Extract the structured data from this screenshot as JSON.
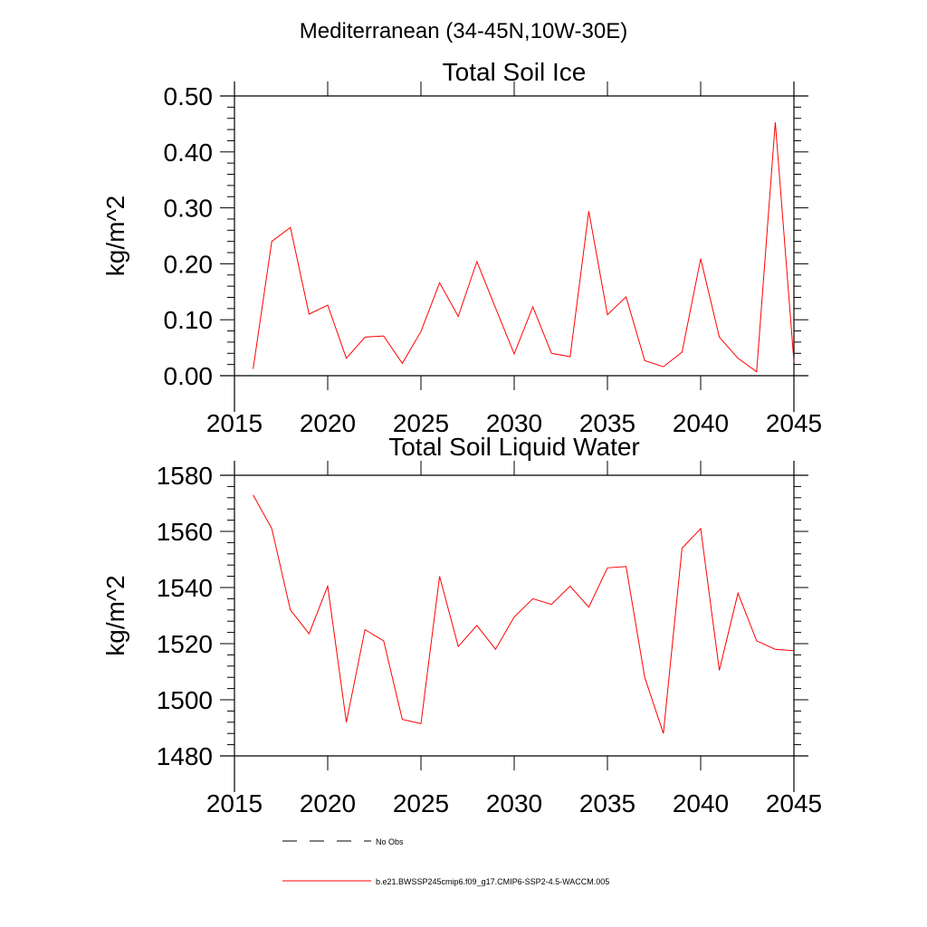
{
  "figure": {
    "suptitle": "Mediterranean (34-45N,10W-30E)"
  },
  "chart_data": [
    {
      "type": "line",
      "title": "Total Soil Ice",
      "xlabel": "",
      "ylabel": "kg/m^2",
      "xlim": [
        2015,
        2045
      ],
      "ylim": [
        0.0,
        0.5
      ],
      "x_ticks": [
        "2015",
        "2020",
        "2025",
        "2030",
        "2035",
        "2040",
        "2045"
      ],
      "y_ticks": [
        "0.00",
        "0.10",
        "0.20",
        "0.30",
        "0.40",
        "0.50"
      ],
      "x": [
        2016,
        2017,
        2018,
        2019,
        2020,
        2021,
        2022,
        2023,
        2024,
        2025,
        2026,
        2027,
        2028,
        2029,
        2030,
        2031,
        2032,
        2033,
        2034,
        2035,
        2036,
        2037,
        2038,
        2039,
        2040,
        2041,
        2042,
        2043,
        2044,
        2045
      ],
      "series": [
        {
          "name": "b.e21.BWSSP245cmip6.f09_g17.CMIP6-SSP2-4.5-WACCM.005",
          "color": "#ff0000",
          "values": [
            0.012,
            0.24,
            0.265,
            0.11,
            0.126,
            0.031,
            0.069,
            0.071,
            0.022,
            0.079,
            0.166,
            0.106,
            0.204,
            0.121,
            0.039,
            0.123,
            0.04,
            0.034,
            0.294,
            0.109,
            0.141,
            0.027,
            0.016,
            0.042,
            0.209,
            0.069,
            0.031,
            0.007,
            0.453,
            0.025
          ]
        }
      ]
    },
    {
      "type": "line",
      "title": "Total Soil Liquid Water",
      "xlabel": "",
      "ylabel": "kg/m^2",
      "xlim": [
        2015,
        2045
      ],
      "ylim": [
        1480,
        1580
      ],
      "x_ticks": [
        "2015",
        "2020",
        "2025",
        "2030",
        "2035",
        "2040",
        "2045"
      ],
      "y_ticks": [
        "1480",
        "1500",
        "1520",
        "1540",
        "1560",
        "1580"
      ],
      "x": [
        2016,
        2017,
        2018,
        2019,
        2020,
        2021,
        2022,
        2023,
        2024,
        2025,
        2026,
        2027,
        2028,
        2029,
        2030,
        2031,
        2032,
        2033,
        2034,
        2035,
        2036,
        2037,
        2038,
        2039,
        2040,
        2041,
        2042,
        2043,
        2044,
        2045
      ],
      "series": [
        {
          "name": "b.e21.BWSSP245cmip6.f09_g17.CMIP6-SSP2-4.5-WACCM.005",
          "color": "#ff0000",
          "values": [
            1573,
            1561,
            1532,
            1523.5,
            1540.5,
            1492,
            1525,
            1521,
            1493,
            1491.5,
            1544,
            1519,
            1526.5,
            1518,
            1529.5,
            1536,
            1534,
            1540.5,
            1533,
            1547,
            1547.5,
            1508,
            1488,
            1554,
            1561,
            1510.5,
            1538,
            1521,
            1518,
            1517.5
          ]
        }
      ]
    }
  ],
  "legend": {
    "items": [
      {
        "label": "No Obs",
        "style": "dashed",
        "color": "#000000"
      },
      {
        "label": "b.e21.BWSSP245cmip6.f09_g17.CMIP6-SSP2-4.5-WACCM.005",
        "style": "solid",
        "color": "#ff0000"
      }
    ]
  }
}
